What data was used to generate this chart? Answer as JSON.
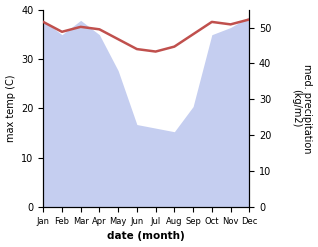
{
  "months": [
    "Jan",
    "Feb",
    "Mar",
    "Apr",
    "May",
    "Jun",
    "Jul",
    "Aug",
    "Sep",
    "Oct",
    "Nov",
    "Dec"
  ],
  "temp": [
    37.5,
    35.5,
    36.5,
    36.0,
    34.0,
    32.0,
    31.5,
    32.5,
    35.0,
    37.5,
    37.0,
    38.0
  ],
  "precip": [
    52.0,
    48.0,
    52.0,
    48.0,
    38.0,
    23.0,
    22.0,
    21.0,
    28.0,
    48.0,
    50.0,
    53.0
  ],
  "temp_color": "#c0504d",
  "precip_fill_color": "#c5cef0",
  "temp_ylim": [
    0,
    40
  ],
  "precip_ylim": [
    0,
    55
  ],
  "temp_yticks": [
    0,
    10,
    20,
    30,
    40
  ],
  "precip_yticks": [
    0,
    10,
    20,
    30,
    40,
    50
  ],
  "ylabel_left": "max temp (C)",
  "ylabel_right": "med. precipitation\n(kg/m2)",
  "xlabel": "date (month)",
  "background_color": "#ffffff",
  "temp_linewidth": 1.8
}
